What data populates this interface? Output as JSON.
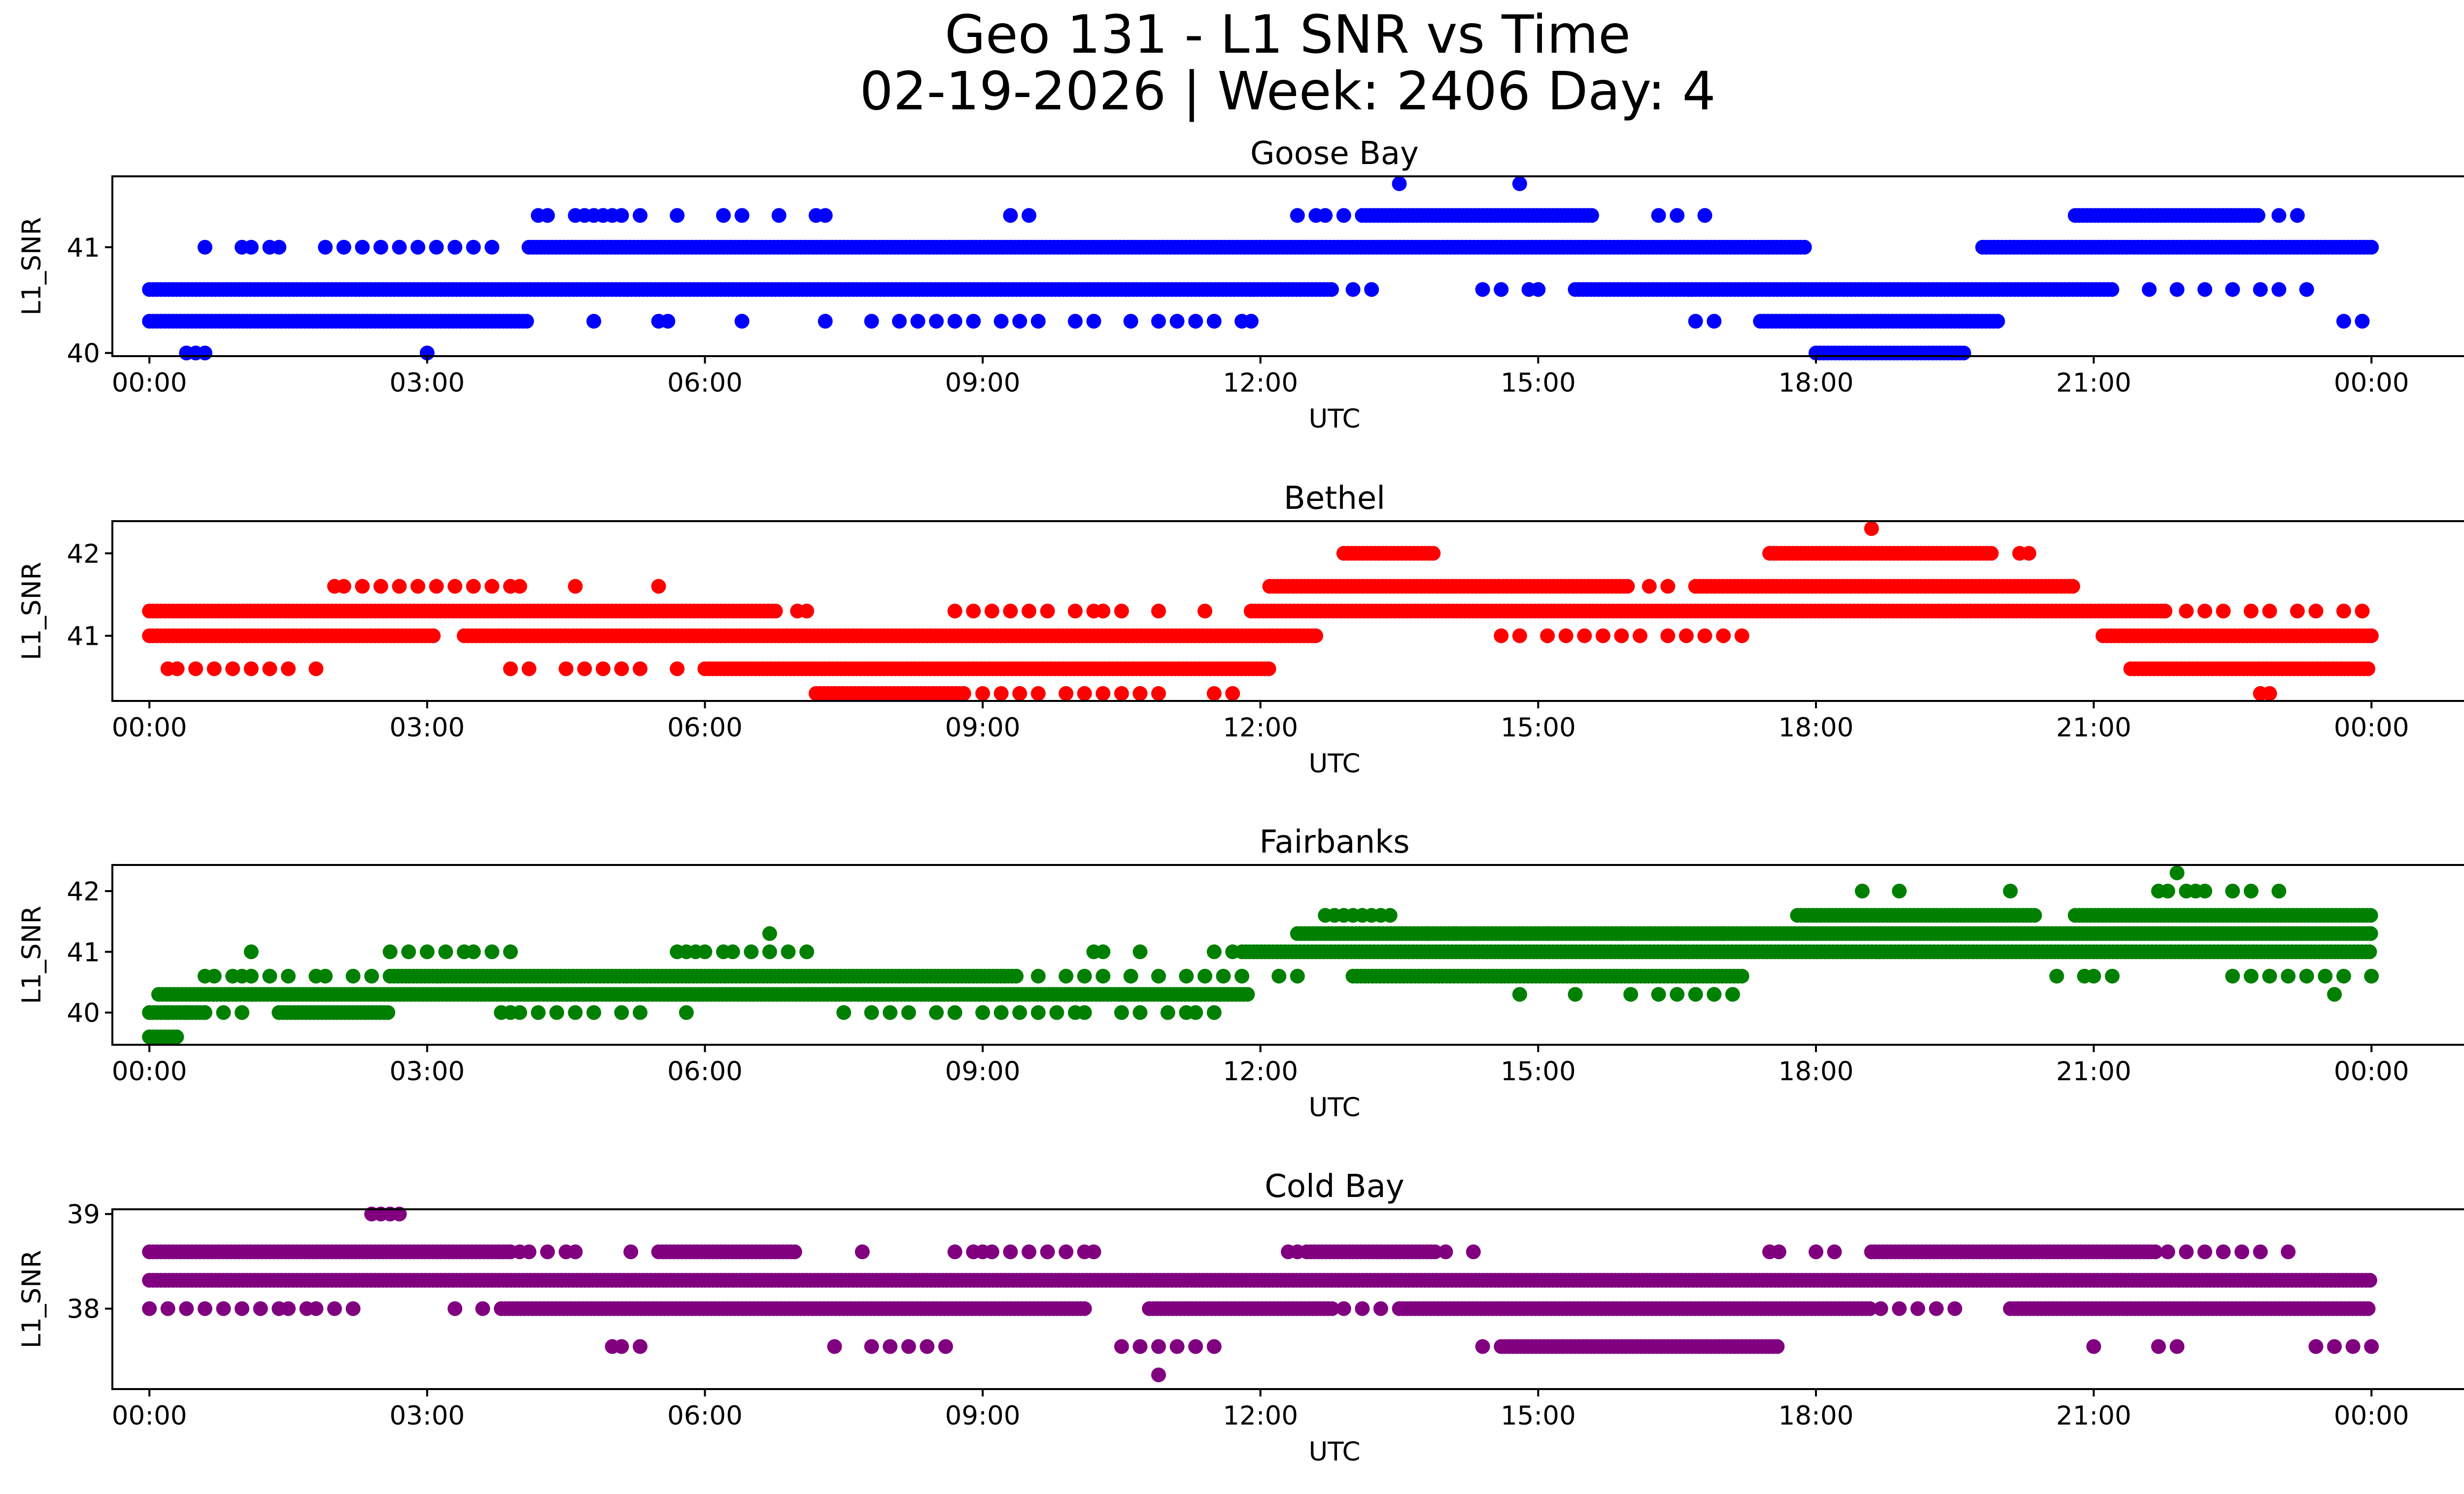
{
  "chart_data": {
    "suptitle_line1": "Geo 131 - L1 SNR vs Time",
    "suptitle_line2": "02-19-2026 | Week: 2406 Day: 4",
    "panels": [
      {
        "type": "scatter",
        "title": "Goose Bay",
        "color": "#0000ff",
        "xlabel": "UTC",
        "ylabel": "L1_SNR",
        "xlim": [
          -0.4,
          26.0
        ],
        "ylim": [
          39.97,
          41.67
        ],
        "xticks": [
          0,
          3,
          6,
          9,
          12,
          15,
          18,
          21,
          24
        ],
        "xtick_labels": [
          "00:00",
          "03:00",
          "06:00",
          "09:00",
          "12:00",
          "15:00",
          "18:00",
          "21:00",
          "00:00"
        ],
        "yticks": [
          40,
          41
        ],
        "ytick_labels": [
          "40",
          "41"
        ],
        "dense": [
          {
            "y": 41.0,
            "x": [
              4.1,
              17.9
            ]
          },
          {
            "y": 41.0,
            "x": [
              19.8,
              24.0
            ]
          },
          {
            "y": 40.6,
            "x": [
              0.0,
              12.8
            ]
          },
          {
            "y": 40.6,
            "x": [
              15.4,
              21.2
            ]
          },
          {
            "y": 40.3,
            "x": [
              0.0,
              4.1
            ]
          },
          {
            "y": 40.3,
            "x": [
              17.4,
              20.0
            ]
          },
          {
            "y": 41.3,
            "x": [
              13.1,
              15.6
            ]
          },
          {
            "y": 41.3,
            "x": [
              20.8,
              22.8
            ]
          },
          {
            "y": 40.0,
            "x": [
              18.0,
              19.6
            ]
          }
        ],
        "sparse": [
          {
            "y": 41.6,
            "x": [
              13.5,
              14.8
            ]
          },
          {
            "y": 41.3,
            "x": [
              4.2,
              4.3,
              4.6,
              4.7,
              4.8,
              4.9,
              5.0,
              5.1,
              5.3,
              5.7,
              6.2,
              6.4,
              6.8,
              7.2,
              7.3,
              9.3,
              9.5,
              12.4,
              12.6,
              12.7,
              12.9,
              16.3,
              16.5,
              16.8,
              23.0,
              23.2
            ]
          },
          {
            "y": 41.0,
            "x": [
              0.6,
              1.0,
              1.1,
              1.3,
              1.4,
              1.9,
              2.1,
              2.3,
              2.5,
              2.7,
              2.9,
              3.1,
              3.3,
              3.5,
              3.7
            ]
          },
          {
            "y": 40.6,
            "x": [
              13.0,
              13.2,
              14.4,
              14.6,
              14.9,
              15.0,
              21.6,
              21.9,
              22.2,
              22.5,
              22.8,
              23.0,
              23.3
            ]
          },
          {
            "y": 40.3,
            "x": [
              4.8,
              5.5,
              5.6,
              6.4,
              7.3,
              7.8,
              8.1,
              8.3,
              8.5,
              8.7,
              8.9,
              9.2,
              9.4,
              9.6,
              10.0,
              10.2,
              10.6,
              10.9,
              11.1,
              11.3,
              11.5,
              11.8,
              11.9,
              16.7,
              16.9,
              23.7,
              23.9
            ]
          },
          {
            "y": 40.0,
            "x": [
              0.4,
              0.5,
              0.6,
              3.0
            ]
          }
        ]
      },
      {
        "type": "scatter",
        "title": "Bethel",
        "color": "#ff0000",
        "xlabel": "UTC",
        "ylabel": "L1_SNR",
        "xlim": [
          -0.4,
          26.0
        ],
        "ylim": [
          40.21,
          42.39
        ],
        "xticks": [
          0,
          3,
          6,
          9,
          12,
          15,
          18,
          21,
          24
        ],
        "xtick_labels": [
          "00:00",
          "03:00",
          "06:00",
          "09:00",
          "12:00",
          "15:00",
          "18:00",
          "21:00",
          "00:00"
        ],
        "yticks": [
          41,
          42
        ],
        "ytick_labels": [
          "41",
          "42"
        ],
        "dense": [
          {
            "y": 41.3,
            "x": [
              0.0,
              6.8
            ]
          },
          {
            "y": 41.3,
            "x": [
              11.9,
              21.8
            ]
          },
          {
            "y": 41.0,
            "x": [
              0.0,
              3.1
            ]
          },
          {
            "y": 41.0,
            "x": [
              3.4,
              12.6
            ]
          },
          {
            "y": 41.0,
            "x": [
              21.1,
              24.0
            ]
          },
          {
            "y": 40.6,
            "x": [
              6.0,
              12.1
            ]
          },
          {
            "y": 40.6,
            "x": [
              21.4,
              24.0
            ]
          },
          {
            "y": 40.3,
            "x": [
              7.2,
              8.8
            ]
          },
          {
            "y": 41.6,
            "x": [
              12.1,
              16.0
            ]
          },
          {
            "y": 41.6,
            "x": [
              16.7,
              20.8
            ]
          },
          {
            "y": 42.0,
            "x": [
              12.9,
              13.9
            ]
          },
          {
            "y": 42.0,
            "x": [
              17.5,
              19.9
            ]
          }
        ],
        "sparse": [
          {
            "y": 42.3,
            "x": [
              18.6
            ]
          },
          {
            "y": 42.0,
            "x": [
              20.2,
              20.3
            ]
          },
          {
            "y": 41.6,
            "x": [
              2.0,
              2.1,
              2.3,
              2.5,
              2.7,
              2.9,
              3.1,
              3.3,
              3.5,
              3.7,
              3.9,
              4.0,
              4.6,
              5.5,
              16.2,
              16.4
            ]
          },
          {
            "y": 41.3,
            "x": [
              7.0,
              7.1,
              8.7,
              8.9,
              9.1,
              9.3,
              9.5,
              9.7,
              10.0,
              10.2,
              10.3,
              10.5,
              10.9,
              11.4,
              22.0,
              22.2,
              22.4,
              22.7,
              22.9,
              23.2,
              23.4,
              23.7,
              23.9
            ]
          },
          {
            "y": 41.0,
            "x": [
              14.6,
              14.8,
              15.1,
              15.3,
              15.5,
              15.7,
              15.9,
              16.1,
              16.4,
              16.6,
              16.8,
              17.0,
              17.2
            ]
          },
          {
            "y": 40.6,
            "x": [
              0.2,
              0.3,
              0.5,
              0.7,
              0.9,
              1.1,
              1.3,
              1.5,
              1.8,
              3.9,
              4.1,
              4.5,
              4.7,
              4.9,
              5.1,
              5.3,
              5.7
            ]
          },
          {
            "y": 40.3,
            "x": [
              9.0,
              9.2,
              9.4,
              9.6,
              9.9,
              10.1,
              10.3,
              10.5,
              10.7,
              10.9,
              11.5,
              11.7,
              22.8,
              22.9
            ]
          }
        ]
      },
      {
        "type": "scatter",
        "title": "Fairbanks",
        "color": "#008000",
        "xlabel": "UTC",
        "ylabel": "L1_SNR",
        "xlim": [
          -0.4,
          26.0
        ],
        "ylim": [
          39.47,
          42.43
        ],
        "xticks": [
          0,
          3,
          6,
          9,
          12,
          15,
          18,
          21,
          24
        ],
        "xtick_labels": [
          "00:00",
          "03:00",
          "06:00",
          "09:00",
          "12:00",
          "15:00",
          "18:00",
          "21:00",
          "00:00"
        ],
        "yticks": [
          40,
          41,
          42
        ],
        "ytick_labels": [
          "40",
          "41",
          "42"
        ],
        "dense": [
          {
            "y": 40.6,
            "x": [
              2.6,
              9.4
            ]
          },
          {
            "y": 40.6,
            "x": [
              13.0,
              17.2
            ]
          },
          {
            "y": 40.3,
            "x": [
              0.1,
              11.9
            ]
          },
          {
            "y": 41.0,
            "x": [
              11.8,
              24.0
            ]
          },
          {
            "y": 41.3,
            "x": [
              12.4,
              24.0
            ]
          },
          {
            "y": 41.6,
            "x": [
              17.8,
              20.4
            ]
          },
          {
            "y": 41.6,
            "x": [
              20.8,
              24.0
            ]
          },
          {
            "y": 40.0,
            "x": [
              0.0,
              0.6
            ]
          },
          {
            "y": 39.6,
            "x": [
              0.0,
              0.3
            ]
          },
          {
            "y": 40.0,
            "x": [
              1.4,
              2.6
            ]
          }
        ],
        "sparse": [
          {
            "y": 42.3,
            "x": [
              21.9
            ]
          },
          {
            "y": 42.0,
            "x": [
              18.5,
              18.9,
              20.1,
              21.7,
              21.8,
              22.0,
              22.1,
              22.2,
              22.5,
              22.7,
              23.0
            ]
          },
          {
            "y": 41.6,
            "x": [
              12.7,
              12.8,
              12.9,
              13.0,
              13.1,
              13.2,
              13.3,
              13.4
            ]
          },
          {
            "y": 41.3,
            "x": [
              6.7,
              13.8,
              14.1,
              14.3,
              14.5,
              14.8,
              15.1,
              15.5,
              15.9,
              16.2,
              16.5,
              17.0
            ]
          },
          {
            "y": 41.0,
            "x": [
              1.1,
              2.6,
              2.8,
              3.0,
              3.2,
              3.4,
              3.5,
              3.7,
              3.9,
              5.7,
              5.8,
              5.9,
              6.0,
              6.2,
              6.3,
              6.5,
              6.7,
              6.9,
              7.1,
              10.2,
              10.3,
              10.7,
              11.5,
              11.7
            ]
          },
          {
            "y": 40.6,
            "x": [
              0.6,
              0.7,
              0.9,
              1.0,
              1.1,
              1.3,
              1.5,
              1.8,
              1.9,
              2.2,
              2.4,
              9.6,
              9.9,
              10.1,
              10.3,
              10.6,
              10.9,
              11.2,
              11.4,
              11.6,
              11.8,
              12.2,
              12.4,
              20.6,
              20.9,
              21.0,
              21.2,
              22.5,
              22.7,
              22.9,
              23.1,
              23.3,
              23.5,
              23.7,
              24.0
            ]
          },
          {
            "y": 40.3,
            "x": [
              14.8,
              15.4,
              16.0,
              16.3,
              16.5,
              16.7,
              16.9,
              17.1,
              23.6
            ]
          },
          {
            "y": 40.0,
            "x": [
              0.0,
              0.2,
              0.4,
              0.6,
              0.8,
              1.0,
              3.8,
              3.9,
              4.0,
              4.2,
              4.4,
              4.6,
              4.8,
              5.1,
              5.3,
              5.8,
              7.5,
              7.8,
              8.0,
              8.2,
              8.5,
              8.7,
              9.0,
              9.2,
              9.4,
              9.6,
              9.8,
              10.0,
              10.1,
              10.5,
              10.7,
              11.0,
              11.2,
              11.3,
              11.5
            ]
          }
        ]
      },
      {
        "type": "scatter",
        "title": "Cold Bay",
        "color": "#800080",
        "xlabel": "UTC",
        "ylabel": "L1_SNR",
        "xlim": [
          -0.4,
          26.0
        ],
        "ylim": [
          37.15,
          39.05
        ],
        "xticks": [
          0,
          3,
          6,
          9,
          12,
          15,
          18,
          21,
          24
        ],
        "xtick_labels": [
          "00:00",
          "03:00",
          "06:00",
          "09:00",
          "12:00",
          "15:00",
          "18:00",
          "21:00",
          "00:00"
        ],
        "yticks": [
          38,
          39
        ],
        "ytick_labels": [
          "38",
          "39"
        ],
        "dense": [
          {
            "y": 38.3,
            "x": [
              0.0,
              24.0
            ]
          },
          {
            "y": 38.6,
            "x": [
              0.0,
              3.9
            ]
          },
          {
            "y": 38.6,
            "x": [
              5.5,
              7.0
            ]
          },
          {
            "y": 38.6,
            "x": [
              18.6,
              21.7
            ]
          },
          {
            "y": 38.0,
            "x": [
              3.8,
              10.1
            ]
          },
          {
            "y": 38.0,
            "x": [
              10.8,
              12.8
            ]
          },
          {
            "y": 38.0,
            "x": [
              13.5,
              18.6
            ]
          },
          {
            "y": 38.0,
            "x": [
              20.1,
              24.0
            ]
          },
          {
            "y": 38.6,
            "x": [
              12.5,
              13.9
            ]
          },
          {
            "y": 37.6,
            "x": [
              14.6,
              17.6
            ]
          }
        ],
        "sparse": [
          {
            "y": 39.0,
            "x": [
              2.4,
              2.5,
              2.6,
              2.7
            ]
          },
          {
            "y": 38.6,
            "x": [
              3.9,
              4.0,
              4.1,
              4.3,
              4.5,
              4.6,
              5.2,
              7.7,
              8.7,
              8.9,
              9.0,
              9.1,
              9.3,
              9.5,
              9.7,
              9.9,
              10.1,
              10.2,
              12.3,
              12.4,
              14.0,
              14.3,
              17.5,
              17.6,
              18.0,
              18.2,
              21.8,
              22.0,
              22.2,
              22.4,
              22.6,
              22.8,
              23.1
            ]
          },
          {
            "y": 38.0,
            "x": [
              0.0,
              0.2,
              0.4,
              0.6,
              0.8,
              1.0,
              1.2,
              1.4,
              1.5,
              1.7,
              1.8,
              2.0,
              2.2,
              3.3,
              3.6,
              12.9,
              13.1,
              13.3,
              18.7,
              18.9,
              19.1,
              19.3,
              19.5
            ]
          },
          {
            "y": 37.6,
            "x": [
              5.0,
              5.1,
              5.3,
              7.4,
              7.8,
              8.0,
              8.2,
              8.4,
              8.6,
              10.5,
              10.7,
              10.9,
              11.1,
              11.3,
              11.5,
              14.4,
              21.0,
              21.7,
              21.9,
              23.4,
              23.6,
              23.8,
              24.0
            ]
          },
          {
            "y": 37.3,
            "x": [
              10.9
            ]
          }
        ]
      }
    ]
  }
}
